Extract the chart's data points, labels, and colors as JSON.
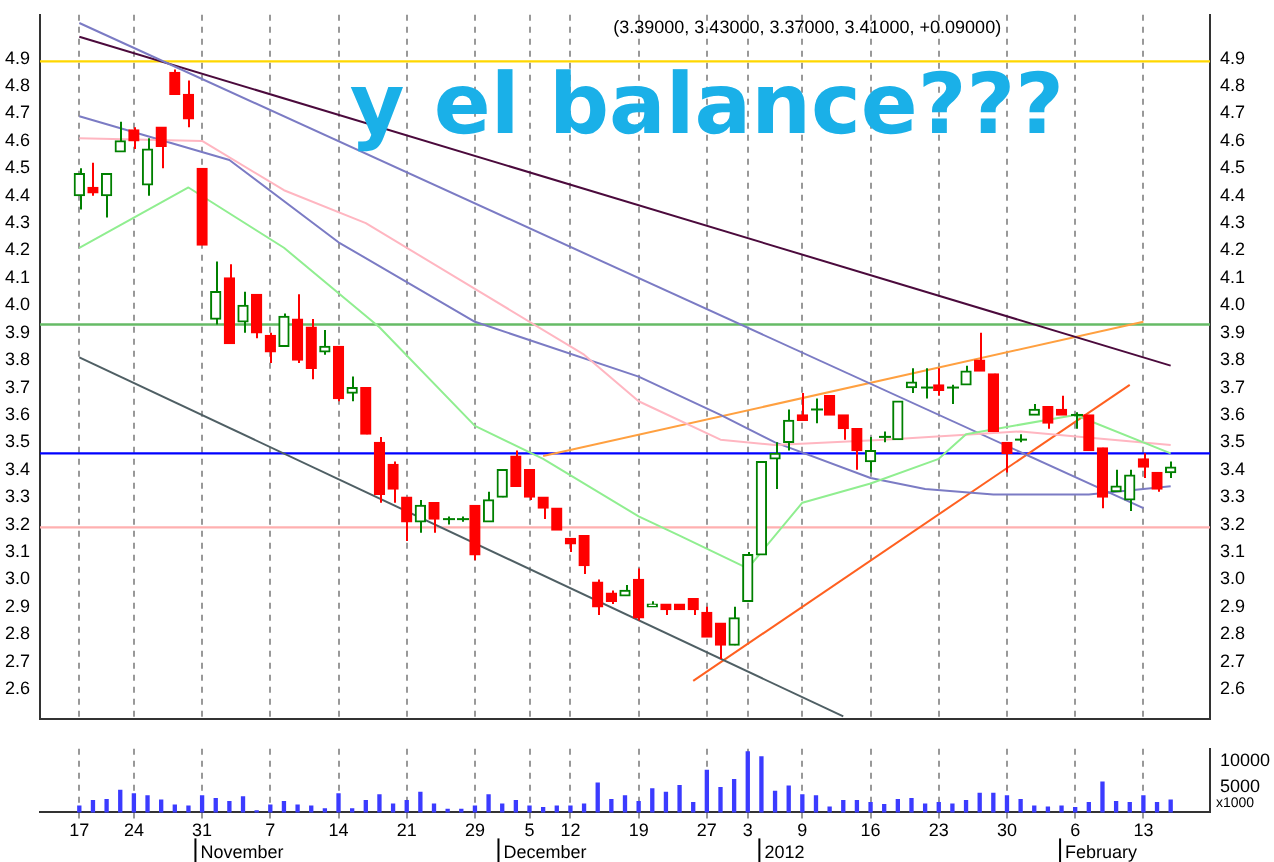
{
  "chart_data": [
    {
      "type": "candlestick",
      "title": "(3.39000, 3.43000, 3.37000, 3.41000, +0.09000)",
      "annotations": [
        "y el balance???"
      ],
      "categories": [
        "17",
        null,
        null,
        null,
        "24",
        null,
        null,
        null,
        null,
        "31",
        null,
        null,
        null,
        null,
        "7",
        null,
        null,
        null,
        null,
        "14",
        null,
        null,
        null,
        null,
        "21",
        null,
        null,
        null,
        null,
        "29",
        null,
        null,
        null,
        "5",
        null,
        null,
        "12",
        null,
        null,
        null,
        null,
        "19",
        null,
        null,
        null,
        null,
        "27",
        null,
        null,
        "3",
        null,
        null,
        null,
        "9",
        null,
        null,
        null,
        null,
        "16",
        null,
        null,
        null,
        null,
        "23",
        null,
        null,
        null,
        null,
        "30",
        null,
        null,
        null,
        null,
        "6",
        null,
        null,
        null,
        null,
        "13",
        null,
        null
      ],
      "ohlc": [
        [
          4.4,
          4.5,
          4.35,
          4.48
        ],
        [
          4.43,
          4.52,
          4.4,
          4.41
        ],
        [
          4.4,
          4.48,
          4.32,
          4.48
        ],
        [
          4.56,
          4.67,
          4.56,
          4.6
        ],
        [
          4.64,
          4.65,
          4.57,
          4.6
        ],
        [
          4.44,
          4.61,
          4.4,
          4.57
        ],
        [
          4.65,
          4.65,
          4.5,
          4.58
        ],
        [
          4.85,
          4.86,
          4.77,
          4.77
        ],
        [
          4.77,
          4.82,
          4.65,
          4.68
        ],
        [
          4.5,
          4.5,
          4.22,
          4.22
        ],
        [
          3.95,
          4.16,
          3.93,
          4.05
        ],
        [
          4.1,
          4.15,
          3.86,
          3.86
        ],
        [
          3.94,
          4.05,
          3.9,
          4.0
        ],
        [
          4.04,
          4.04,
          3.88,
          3.9
        ],
        [
          3.89,
          3.9,
          3.79,
          3.83
        ],
        [
          3.85,
          3.97,
          3.85,
          3.96
        ],
        [
          3.95,
          4.04,
          3.79,
          3.8
        ],
        [
          3.92,
          3.95,
          3.73,
          3.77
        ],
        [
          3.83,
          3.91,
          3.82,
          3.85
        ],
        [
          3.85,
          3.85,
          3.65,
          3.66
        ],
        [
          3.68,
          3.74,
          3.65,
          3.7
        ],
        [
          3.7,
          3.7,
          3.53,
          3.53
        ],
        [
          3.5,
          3.52,
          3.28,
          3.31
        ],
        [
          3.42,
          3.43,
          3.28,
          3.33
        ],
        [
          3.3,
          3.3,
          3.14,
          3.21
        ],
        [
          3.21,
          3.29,
          3.17,
          3.27
        ],
        [
          3.28,
          3.28,
          3.17,
          3.22
        ],
        [
          3.22,
          3.23,
          3.2,
          3.22
        ],
        [
          3.22,
          3.23,
          3.21,
          3.22
        ],
        [
          3.27,
          3.27,
          3.07,
          3.09
        ],
        [
          3.21,
          3.32,
          3.21,
          3.29
        ],
        [
          3.3,
          3.4,
          3.3,
          3.4
        ],
        [
          3.45,
          3.47,
          3.34,
          3.34
        ],
        [
          3.4,
          3.4,
          3.29,
          3.3
        ],
        [
          3.3,
          3.3,
          3.22,
          3.26
        ],
        [
          3.26,
          3.26,
          3.18,
          3.18
        ],
        [
          3.15,
          3.15,
          3.1,
          3.13
        ],
        [
          3.16,
          3.16,
          3.02,
          3.05
        ],
        [
          2.99,
          3.0,
          2.87,
          2.9
        ],
        [
          2.95,
          2.96,
          2.91,
          2.92
        ],
        [
          2.94,
          2.98,
          2.94,
          2.96
        ],
        [
          3.0,
          3.04,
          2.85,
          2.86
        ],
        [
          2.9,
          2.92,
          2.9,
          2.91
        ],
        [
          2.91,
          2.91,
          2.87,
          2.89
        ],
        [
          2.91,
          2.91,
          2.89,
          2.89
        ],
        [
          2.93,
          2.93,
          2.87,
          2.89
        ],
        [
          2.88,
          2.9,
          2.79,
          2.79
        ],
        [
          2.84,
          2.84,
          2.71,
          2.76
        ],
        [
          2.76,
          2.9,
          2.76,
          2.86
        ],
        [
          2.92,
          3.1,
          2.92,
          3.09
        ],
        [
          3.09,
          3.43,
          3.09,
          3.43
        ],
        [
          3.44,
          3.5,
          3.33,
          3.46
        ],
        [
          3.5,
          3.62,
          3.47,
          3.58
        ],
        [
          3.6,
          3.68,
          3.58,
          3.58
        ],
        [
          3.62,
          3.66,
          3.57,
          3.62
        ],
        [
          3.67,
          3.67,
          3.6,
          3.6
        ],
        [
          3.6,
          3.6,
          3.51,
          3.55
        ],
        [
          3.55,
          3.55,
          3.4,
          3.47
        ],
        [
          3.43,
          3.52,
          3.39,
          3.47
        ],
        [
          3.52,
          3.54,
          3.5,
          3.52
        ],
        [
          3.51,
          3.65,
          3.51,
          3.65
        ],
        [
          3.7,
          3.77,
          3.68,
          3.72
        ],
        [
          3.7,
          3.77,
          3.66,
          3.7
        ],
        [
          3.71,
          3.77,
          3.67,
          3.69
        ],
        [
          3.7,
          3.71,
          3.64,
          3.7
        ],
        [
          3.71,
          3.78,
          3.71,
          3.76
        ],
        [
          3.8,
          3.9,
          3.76,
          3.76
        ],
        [
          3.75,
          3.75,
          3.54,
          3.54
        ],
        [
          3.5,
          3.5,
          3.39,
          3.46
        ],
        [
          3.51,
          3.53,
          3.5,
          3.51
        ],
        [
          3.6,
          3.64,
          3.6,
          3.62
        ],
        [
          3.63,
          3.63,
          3.55,
          3.57
        ],
        [
          3.62,
          3.67,
          3.6,
          3.6
        ],
        [
          3.6,
          3.61,
          3.55,
          3.6
        ],
        [
          3.6,
          3.6,
          3.47,
          3.47
        ],
        [
          3.48,
          3.48,
          3.26,
          3.3
        ],
        [
          3.32,
          3.4,
          3.32,
          3.34
        ],
        [
          3.29,
          3.4,
          3.25,
          3.38
        ],
        [
          3.44,
          3.46,
          3.37,
          3.41
        ],
        [
          3.39,
          3.39,
          3.32,
          3.33
        ],
        [
          3.39,
          3.43,
          3.37,
          3.41
        ]
      ],
      "colors": [
        "#008000",
        "#ff0000",
        "#008000",
        "#008000",
        "#ff0000",
        "#008000",
        "#ff0000",
        "#ff0000",
        "#ff0000",
        "#ff0000",
        "#008000",
        "#ff0000",
        "#008000",
        "#ff0000",
        "#ff0000",
        "#008000",
        "#ff0000",
        "#ff0000",
        "#008000",
        "#ff0000",
        "#008000",
        "#ff0000",
        "#ff0000",
        "#ff0000",
        "#ff0000",
        "#008000",
        "#ff0000",
        "#008000",
        "#008000",
        "#ff0000",
        "#008000",
        "#008000",
        "#ff0000",
        "#ff0000",
        "#ff0000",
        "#ff0000",
        "#ff0000",
        "#ff0000",
        "#ff0000",
        "#ff0000",
        "#008000",
        "#ff0000",
        "#008000",
        "#ff0000",
        "#ff0000",
        "#ff0000",
        "#ff0000",
        "#ff0000",
        "#008000",
        "#008000",
        "#008000",
        "#008000",
        "#008000",
        "#ff0000",
        "#008000",
        "#ff0000",
        "#ff0000",
        "#ff0000",
        "#008000",
        "#008000",
        "#008000",
        "#008000",
        "#008000",
        "#ff0000",
        "#008000",
        "#008000",
        "#ff0000",
        "#ff0000",
        "#ff0000",
        "#008000",
        "#008000",
        "#ff0000",
        "#ff0000",
        "#008000",
        "#ff0000",
        "#ff0000",
        "#008000",
        "#008000",
        "#ff0000",
        "#ff0000",
        "#008000"
      ],
      "series": [
        {
          "type": "line",
          "color": "#90ee90",
          "values": [
            4.21,
            null,
            null,
            null,
            null,
            null,
            null,
            null,
            4.43,
            null,
            null,
            null,
            null,
            null,
            null,
            4.21,
            null,
            null,
            null,
            null,
            null,
            null,
            3.92,
            null,
            null,
            null,
            null,
            null,
            null,
            3.56,
            null,
            null,
            null,
            null,
            3.44,
            null,
            null,
            null,
            null,
            null,
            null,
            3.23,
            null,
            null,
            3.16,
            null,
            null,
            null,
            null,
            3.04,
            null,
            null,
            null,
            3.28,
            null,
            null,
            null,
            null,
            3.35,
            null,
            null,
            null,
            null,
            3.44,
            null,
            3.53,
            null,
            null,
            null,
            null,
            null,
            null,
            null,
            3.6,
            null,
            null,
            null,
            null,
            null,
            null,
            3.46
          ]
        },
        {
          "type": "line",
          "color": "#ffb6c1",
          "values": [
            4.61,
            null,
            null,
            null,
            null,
            null,
            null,
            null,
            null,
            4.6,
            null,
            null,
            null,
            null,
            null,
            4.42,
            null,
            null,
            null,
            null,
            null,
            4.3,
            null,
            null,
            null,
            null,
            null,
            null,
            null,
            4.06,
            null,
            null,
            null,
            null,
            null,
            null,
            null,
            3.82,
            null,
            null,
            null,
            3.65,
            null,
            null,
            null,
            null,
            null,
            3.51,
            null,
            null,
            null,
            3.49,
            null,
            null,
            null,
            null,
            null,
            null,
            null,
            3.51,
            null,
            null,
            null,
            null,
            null,
            null,
            null,
            null,
            null,
            3.54,
            null,
            null,
            null,
            null,
            null,
            null,
            null,
            null,
            null,
            null,
            3.49
          ]
        },
        {
          "type": "line",
          "color": "#7b7bc4",
          "values": [
            4.69,
            null,
            null,
            null,
            null,
            null,
            null,
            null,
            null,
            null,
            null,
            4.53,
            null,
            null,
            null,
            null,
            null,
            null,
            null,
            4.23,
            null,
            null,
            null,
            null,
            null,
            null,
            null,
            null,
            null,
            3.94,
            null,
            null,
            null,
            null,
            null,
            null,
            null,
            null,
            null,
            null,
            null,
            3.74,
            null,
            null,
            null,
            null,
            null,
            3.6,
            null,
            null,
            null,
            3.5,
            null,
            null,
            null,
            null,
            null,
            null,
            3.37,
            null,
            null,
            null,
            3.33,
            null,
            null,
            null,
            null,
            3.31,
            null,
            null,
            null,
            null,
            null,
            null,
            3.31,
            null,
            null,
            null,
            null,
            null,
            3.34
          ]
        },
        {
          "type": "line",
          "color": "#7b7bc4",
          "values": [
            5.03,
            null,
            null,
            null,
            null,
            null,
            null,
            null,
            null,
            null,
            null,
            null,
            null,
            null,
            null,
            null,
            null,
            null,
            null,
            null,
            null,
            null,
            null,
            null,
            null,
            null,
            null,
            null,
            null,
            null,
            null,
            null,
            null,
            null,
            null,
            null,
            null,
            null,
            null,
            null,
            null,
            null,
            null,
            null,
            null,
            null,
            null,
            null,
            null,
            null,
            null,
            null,
            null,
            null,
            null,
            null,
            null,
            null,
            null,
            null,
            null,
            null,
            null,
            null,
            null,
            null,
            null,
            null,
            null,
            null,
            null,
            null,
            null,
            null,
            null,
            null,
            null,
            null,
            3.26,
            null,
            null
          ]
        },
        {
          "type": "line",
          "color": "#4b0a3c",
          "values": [
            4.98,
            null,
            null,
            null,
            null,
            null,
            null,
            null,
            null,
            null,
            null,
            null,
            null,
            null,
            null,
            null,
            null,
            null,
            null,
            null,
            null,
            null,
            null,
            null,
            null,
            null,
            null,
            null,
            null,
            null,
            null,
            null,
            null,
            null,
            null,
            null,
            null,
            null,
            null,
            null,
            null,
            null,
            null,
            null,
            null,
            null,
            null,
            null,
            null,
            null,
            null,
            null,
            null,
            null,
            null,
            null,
            null,
            null,
            null,
            null,
            null,
            null,
            null,
            null,
            null,
            null,
            null,
            null,
            null,
            null,
            null,
            null,
            null,
            null,
            null,
            null,
            null,
            null,
            null,
            null,
            3.78
          ]
        },
        {
          "type": "line",
          "color": "#4f5f64",
          "values": [
            3.81,
            null,
            null,
            null,
            null,
            null,
            null,
            null,
            null,
            null,
            null,
            null,
            null,
            null,
            null,
            null,
            null,
            null,
            null,
            null,
            null,
            null,
            null,
            null,
            null,
            null,
            null,
            null,
            null,
            null,
            null,
            null,
            null,
            null,
            null,
            null,
            null,
            null,
            null,
            null,
            null,
            null,
            null,
            null,
            null,
            null,
            null,
            null,
            null,
            null,
            null,
            null,
            null,
            null,
            null,
            null,
            2.5,
            null,
            null,
            null,
            null,
            null,
            null,
            null,
            null,
            null,
            null,
            null,
            null,
            null,
            null,
            null,
            null,
            null,
            null,
            null,
            null,
            null,
            null,
            null,
            null
          ]
        },
        {
          "type": "line",
          "color": "#ffa040",
          "values": [
            null,
            null,
            null,
            null,
            null,
            null,
            null,
            null,
            null,
            null,
            null,
            null,
            null,
            null,
            null,
            null,
            null,
            null,
            null,
            null,
            null,
            null,
            null,
            null,
            null,
            null,
            null,
            null,
            null,
            null,
            null,
            null,
            null,
            null,
            3.45,
            null,
            null,
            null,
            null,
            null,
            null,
            null,
            null,
            null,
            null,
            null,
            null,
            null,
            null,
            null,
            null,
            null,
            null,
            null,
            null,
            null,
            null,
            null,
            null,
            null,
            null,
            null,
            null,
            null,
            null,
            null,
            null,
            null,
            null,
            null,
            null,
            null,
            null,
            null,
            null,
            null,
            null,
            null,
            3.94,
            null,
            null
          ]
        },
        {
          "type": "line",
          "color": "#ff6020",
          "values": [
            null,
            null,
            null,
            null,
            null,
            null,
            null,
            null,
            null,
            null,
            null,
            null,
            null,
            null,
            null,
            null,
            null,
            null,
            null,
            null,
            null,
            null,
            null,
            null,
            null,
            null,
            null,
            null,
            null,
            null,
            null,
            null,
            null,
            null,
            null,
            null,
            null,
            null,
            null,
            null,
            null,
            null,
            null,
            null,
            null,
            2.63,
            null,
            null,
            null,
            null,
            null,
            null,
            null,
            null,
            null,
            null,
            null,
            null,
            null,
            null,
            null,
            null,
            null,
            null,
            null,
            null,
            null,
            null,
            null,
            null,
            null,
            null,
            null,
            null,
            null,
            null,
            null,
            3.71,
            null,
            null,
            null
          ]
        }
      ],
      "ylim": [
        2.49,
        5.06
      ],
      "yticks": [
        2.6,
        2.7,
        2.8,
        2.9,
        {
          "value": 3,
          "label": "3.0"
        },
        3.1,
        3.2,
        3.3,
        3.4,
        3.5,
        3.6,
        3.7,
        3.8,
        3.9,
        {
          "value": 4,
          "label": "4.0"
        },
        4.1,
        4.2,
        4.3,
        4.4,
        4.5,
        4.6,
        4.7,
        4.8,
        4.9
      ],
      "y2lim": [
        2.49,
        5.06
      ],
      "y2ticks": [
        2.6,
        2.7,
        2.8,
        2.9,
        {
          "value": 3,
          "label": "3.0"
        },
        3.1,
        3.2,
        3.3,
        3.4,
        3.5,
        3.6,
        3.7,
        3.8,
        3.9,
        {
          "value": 4,
          "label": "4.0"
        },
        4.1,
        4.2,
        4.3,
        4.4,
        4.5,
        4.6,
        4.7,
        4.8,
        4.9
      ],
      "ref_lines": [
        {
          "axis": "y",
          "value": 4.89,
          "color": "#ffd700"
        },
        {
          "axis": "y",
          "value": 3.93,
          "color": "#66bb66"
        },
        {
          "axis": "y",
          "value": 3.46,
          "color": "#0000ff"
        },
        {
          "axis": "y",
          "value": 3.19,
          "color": "#ffb0b0"
        }
      ],
      "grid": "x",
      "tick_labels": "y"
    },
    {
      "type": "bar",
      "ylabel": "x1000",
      "color": "#3b3bff",
      "categories": [
        "17",
        null,
        null,
        null,
        "24",
        null,
        null,
        null,
        null,
        "31",
        null,
        null,
        null,
        null,
        "7",
        null,
        null,
        null,
        null,
        "14",
        null,
        null,
        null,
        null,
        "21",
        null,
        null,
        null,
        null,
        "29",
        null,
        null,
        null,
        "5",
        null,
        null,
        "12",
        null,
        null,
        null,
        null,
        "19",
        null,
        null,
        null,
        null,
        "27",
        null,
        null,
        "3",
        null,
        null,
        null,
        "9",
        null,
        null,
        null,
        null,
        "16",
        null,
        null,
        null,
        null,
        "23",
        null,
        null,
        null,
        null,
        "30",
        null,
        null,
        null,
        null,
        "6",
        null,
        null,
        null,
        null,
        "13",
        null,
        null
      ],
      "values": [
        1200,
        2300,
        2500,
        4300,
        3600,
        3200,
        2400,
        1400,
        1200,
        3200,
        2700,
        2100,
        3000,
        300,
        1400,
        2100,
        1400,
        1200,
        700,
        3600,
        700,
        2300,
        3400,
        1600,
        2300,
        3900,
        1600,
        600,
        600,
        1200,
        3400,
        1600,
        2300,
        1200,
        900,
        1200,
        1200,
        1600,
        5700,
        2500,
        3200,
        2100,
        4600,
        3900,
        5200,
        1900,
        8200,
        4800,
        6400,
        11800,
        10800,
        4100,
        5100,
        3400,
        3200,
        1000,
        2300,
        2300,
        1900,
        1500,
        2500,
        2700,
        1600,
        1900,
        1600,
        2300,
        3700,
        3700,
        3200,
        2500,
        1200,
        1000,
        1200,
        900,
        1900,
        5900,
        2100,
        1900,
        3200,
        1900,
        2400
      ],
      "ylim": [
        0,
        12400
      ],
      "yticks": [
        5000,
        10000
      ],
      "annotations": [
        "November",
        "December",
        "2012",
        "February"
      ],
      "grid": "x"
    }
  ]
}
